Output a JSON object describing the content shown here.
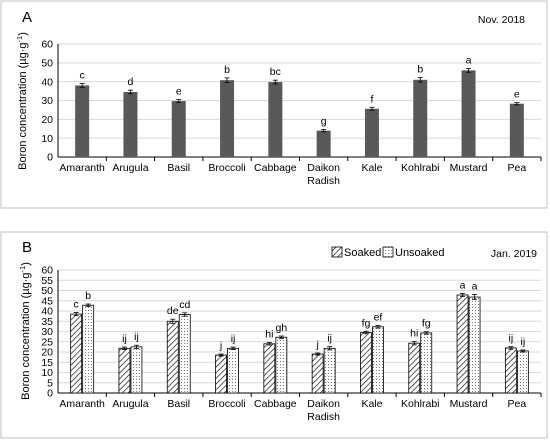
{
  "chart_data": [
    {
      "type": "bar",
      "panel": "A",
      "date": "Nov. 2018",
      "ylabel_main": "Boron concentration (µg·g",
      "ylabel_sup": "-1",
      "ylabel_end": ")",
      "ylim": [
        0,
        60
      ],
      "yticks": [
        0,
        10,
        20,
        30,
        40,
        50,
        60
      ],
      "grid": true,
      "categories": [
        "Amaranth",
        "Arugula",
        "Basil",
        "Broccoli",
        "Cabbage",
        "Daikon\nRadish",
        "Kale",
        "Kohlrabi",
        "Mustard",
        "Pea"
      ],
      "series": [
        {
          "values": [
            38.0,
            34.5,
            29.7,
            40.8,
            39.8,
            14.0,
            25.6,
            41.0,
            46.0,
            28.3
          ],
          "errors": [
            1.0,
            1.0,
            0.8,
            1.2,
            1.0,
            0.6,
            0.8,
            1.2,
            1.0,
            0.6
          ],
          "letters": [
            "c",
            "d",
            "e",
            "b",
            "bc",
            "g",
            "f",
            "b",
            "a",
            "e"
          ],
          "color": "#595959"
        }
      ]
    },
    {
      "type": "bar",
      "panel": "B",
      "date": "Jan. 2019",
      "ylabel_main": "Boron concentration (µg·g",
      "ylabel_sup": "-1",
      "ylabel_end": ")",
      "ylim": [
        0,
        60
      ],
      "yticks": [
        0,
        5,
        10,
        15,
        20,
        25,
        30,
        35,
        40,
        45,
        50,
        55,
        60
      ],
      "grid": true,
      "legend_position": "top-right",
      "categories": [
        "Amaranth",
        "Arugula",
        "Basil",
        "Broccoli",
        "Cabbage",
        "Daikon\nRadish",
        "Kale",
        "Kohlrabi",
        "Mustard",
        "Pea"
      ],
      "series": [
        {
          "name": "Soaked",
          "pattern": "hatch",
          "values": [
            38.5,
            21.8,
            35.0,
            18.5,
            24.0,
            19.0,
            29.5,
            24.3,
            47.8,
            22.0
          ],
          "errors": [
            0.8,
            0.6,
            1.0,
            0.5,
            0.6,
            0.5,
            0.6,
            0.8,
            0.8,
            0.6
          ],
          "letters": [
            "c",
            "ij",
            "de",
            "j",
            "hi",
            "j",
            "fg",
            "hi",
            "a",
            "ij"
          ]
        },
        {
          "name": "Unsoaked",
          "pattern": "dots",
          "values": [
            42.8,
            22.5,
            38.3,
            21.8,
            27.2,
            21.8,
            32.3,
            29.3,
            46.8,
            20.5
          ],
          "errors": [
            0.6,
            0.8,
            0.8,
            0.6,
            0.6,
            0.8,
            0.6,
            0.6,
            1.2,
            0.5
          ],
          "letters": [
            "b",
            "ij",
            "cd",
            "ij",
            "gh",
            "ij",
            "ef",
            "fg",
            "a",
            "ij"
          ]
        }
      ]
    }
  ]
}
